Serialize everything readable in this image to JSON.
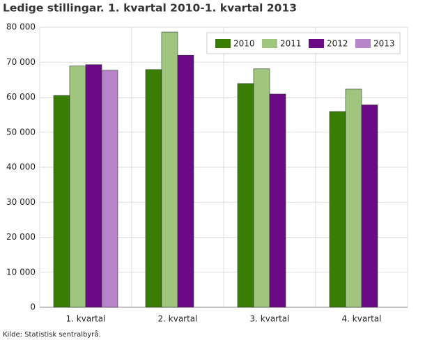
{
  "chart_data": {
    "type": "bar",
    "title": "Ledige stillingar. 1. kvartal 2010-1. kvartal 2013",
    "categories": [
      "1. kvartal",
      "2. kvartal",
      "3. kvartal",
      "4. kvartal"
    ],
    "series": [
      {
        "name": "2010",
        "color": "#3a7d04",
        "values": [
          60500,
          67900,
          63900,
          55900
        ]
      },
      {
        "name": "2011",
        "color": "#9fc57f",
        "values": [
          68900,
          78600,
          68100,
          62300
        ]
      },
      {
        "name": "2012",
        "color": "#6b0a87",
        "values": [
          69300,
          72000,
          60900,
          57800
        ]
      },
      {
        "name": "2013",
        "color": "#b884c9",
        "values": [
          67700,
          null,
          null,
          null
        ]
      }
    ],
    "ylim": [
      0,
      80000
    ],
    "yticks": [
      0,
      {
        "value": 10000,
        "label": "10 000"
      },
      {
        "value": 20000,
        "label": "20 000"
      },
      {
        "value": 30000,
        "label": "30 000"
      },
      {
        "value": 40000,
        "label": "40 000"
      },
      {
        "value": 50000,
        "label": "50 000"
      },
      {
        "value": 60000,
        "label": "60 000"
      },
      {
        "value": 70000,
        "label": "70 000"
      },
      {
        "value": 80000,
        "label": "80 000"
      }
    ],
    "grid": true,
    "legend": "top-right",
    "source": "Kilde: Statistisk sentralbyrå."
  }
}
